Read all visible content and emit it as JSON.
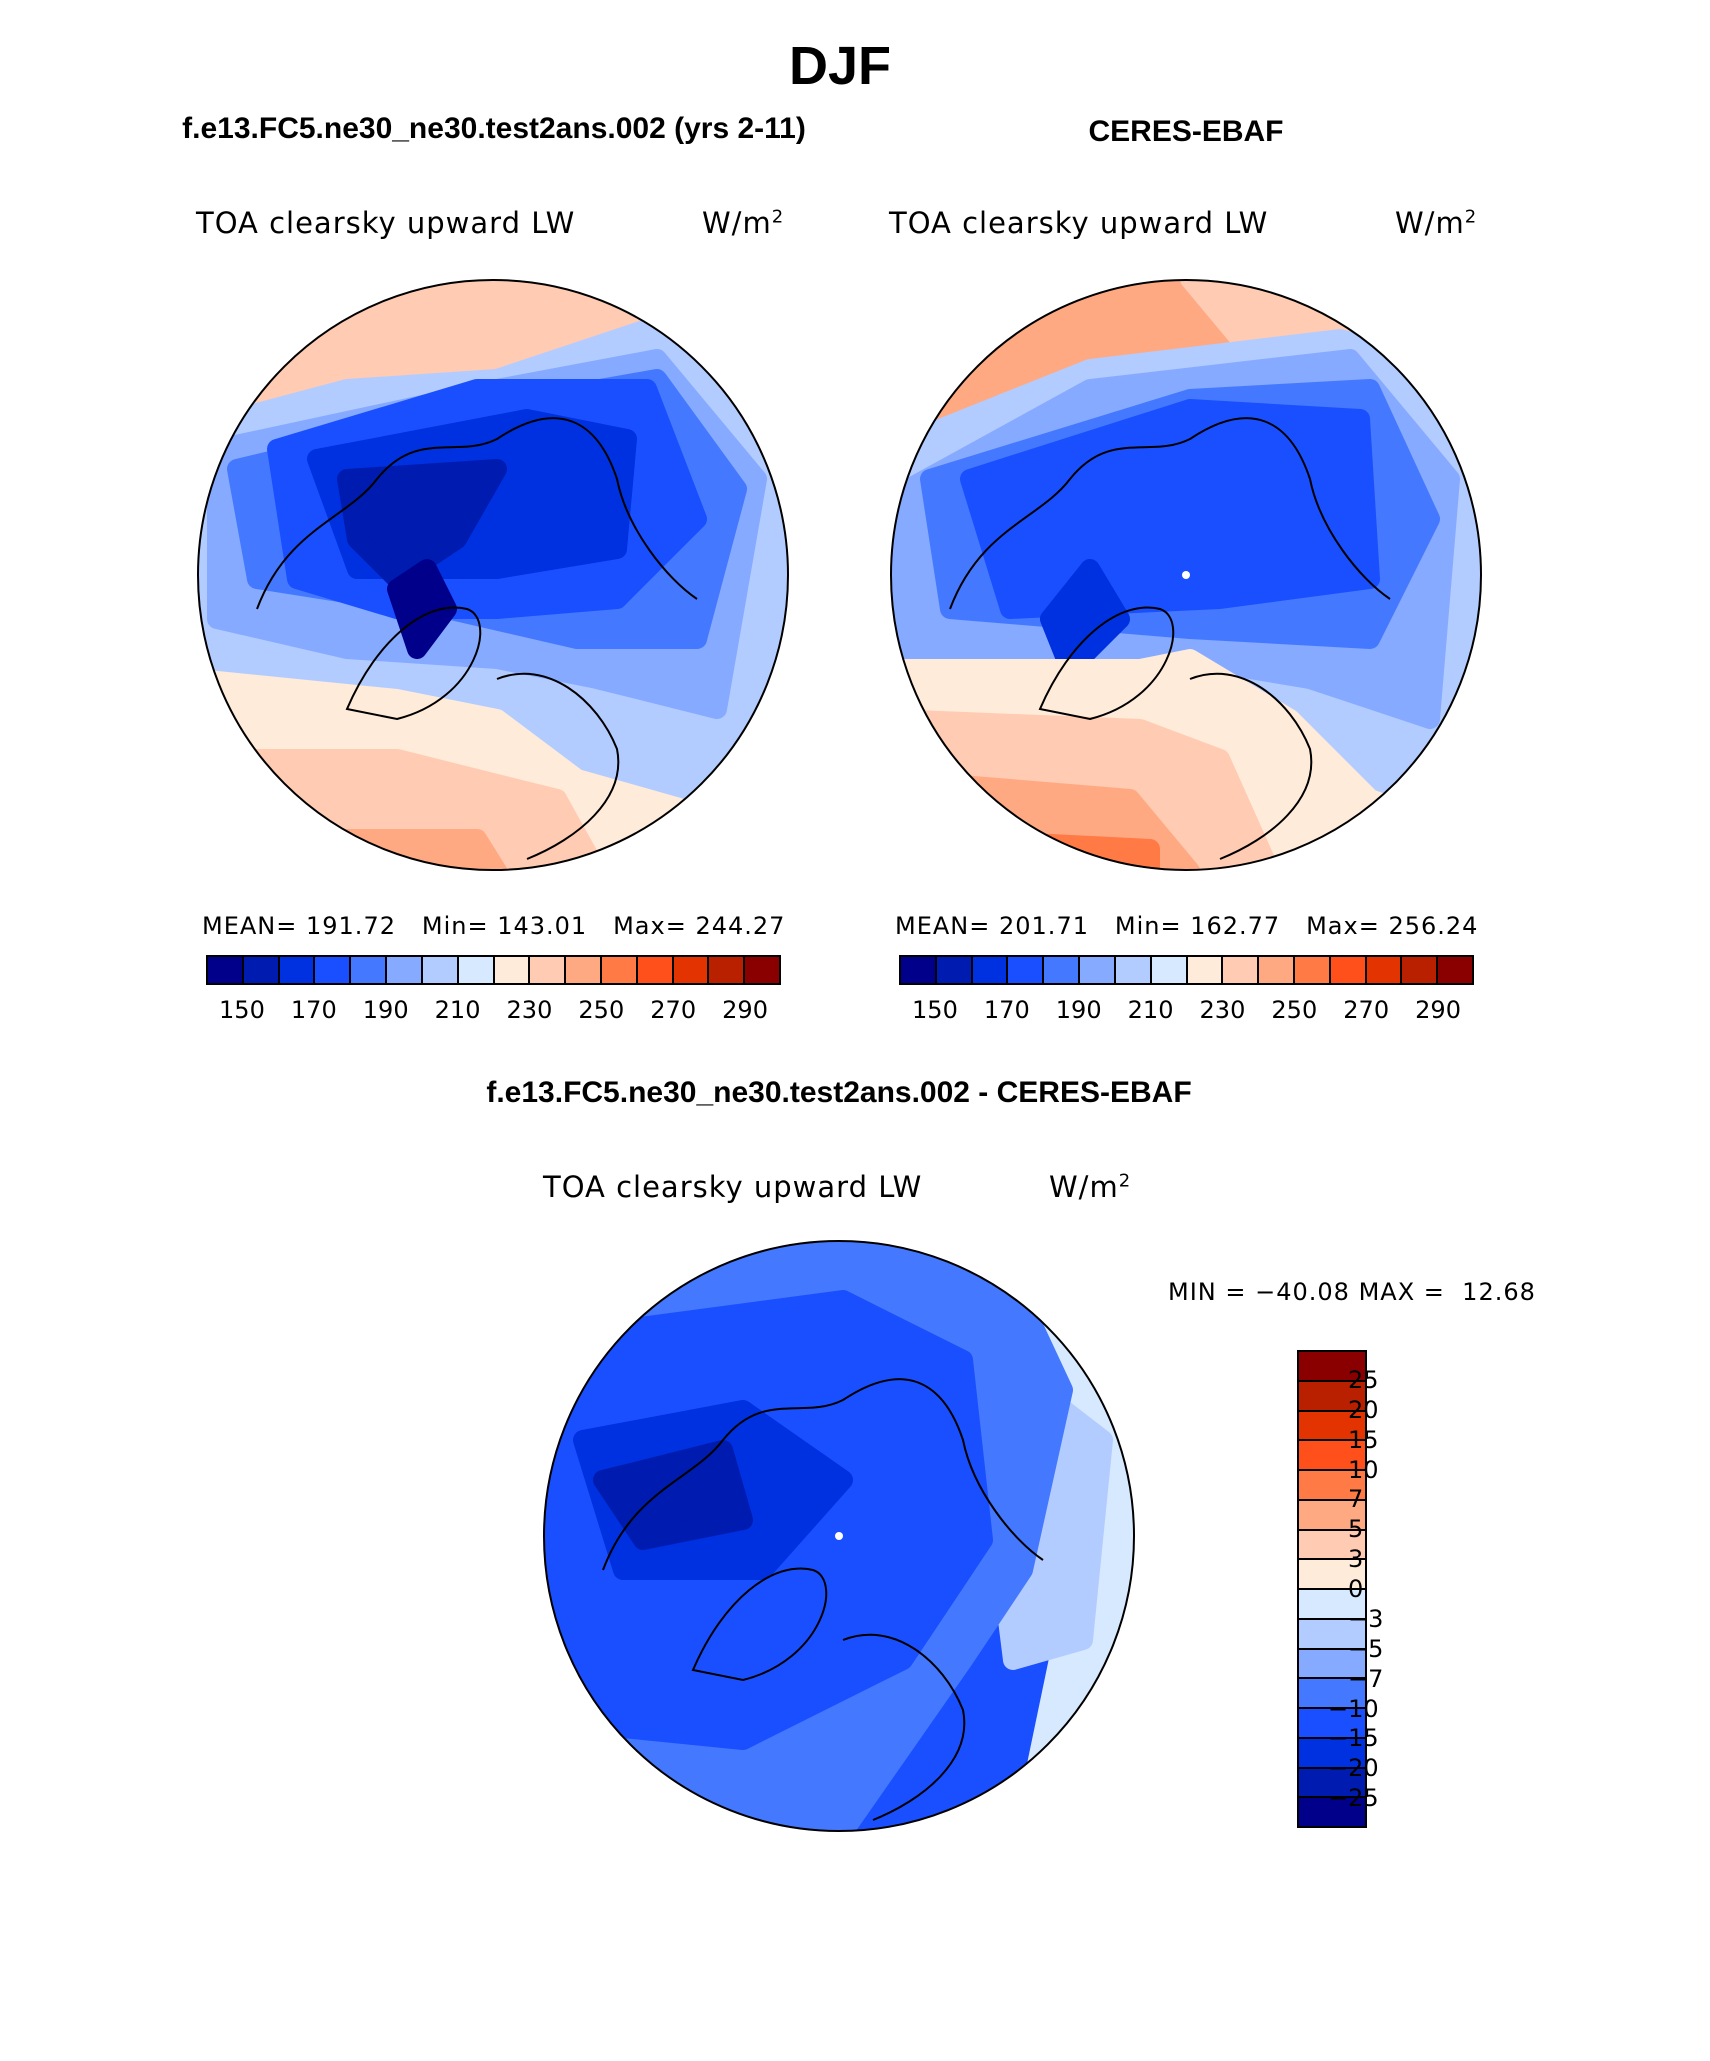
{
  "title": "DJF",
  "chart_data": [
    {
      "type": "heatmap",
      "projection": "north polar stereographic",
      "subtitle": "f.e13.FC5.ne30_ne30.test2ans.002 (yrs 2-11)",
      "title": "TOA clearsky upward LW",
      "units": "W/m2",
      "stats": {
        "mean_label": "MEAN=",
        "mean": "191.72",
        "min_label": "Min=",
        "min": "143.01",
        "max_label": "Max=",
        "max": "244.27"
      },
      "colorbar": {
        "orientation": "horizontal",
        "tick_labels": [
          "150",
          "170",
          "190",
          "210",
          "230",
          "250",
          "270",
          "290"
        ],
        "colors": [
          "#00008a",
          "#001bb0",
          "#0031e0",
          "#1a4fff",
          "#4479ff",
          "#86aaff",
          "#b3ccff",
          "#d6e9ff",
          "#ffebd9",
          "#ffcbb3",
          "#ffa983",
          "#ff7a44",
          "#ff501b",
          "#e23300",
          "#b82000",
          "#8a0000"
        ]
      }
    },
    {
      "type": "heatmap",
      "projection": "north polar stereographic",
      "subtitle": "CERES-EBAF",
      "title": "TOA clearsky upward LW",
      "units": "W/m2",
      "stats": {
        "mean_label": "MEAN=",
        "mean": "201.71",
        "min_label": "Min=",
        "min": "162.77",
        "max_label": "Max=",
        "max": "256.24"
      },
      "colorbar": {
        "orientation": "horizontal",
        "tick_labels": [
          "150",
          "170",
          "190",
          "210",
          "230",
          "250",
          "270",
          "290"
        ],
        "colors": [
          "#00008a",
          "#001bb0",
          "#0031e0",
          "#1a4fff",
          "#4479ff",
          "#86aaff",
          "#b3ccff",
          "#d6e9ff",
          "#ffebd9",
          "#ffcbb3",
          "#ffa983",
          "#ff7a44",
          "#ff501b",
          "#e23300",
          "#b82000",
          "#8a0000"
        ]
      }
    },
    {
      "type": "heatmap",
      "projection": "north polar stereographic",
      "subtitle": "f.e13.FC5.ne30_ne30.test2ans.002 - CERES-EBAF",
      "title": "TOA clearsky upward LW",
      "units": "W/m2",
      "stats": {
        "min_label": "MIN =",
        "min": "−40.08",
        "max_label": "MAX =",
        "max": "12.68"
      },
      "colorbar": {
        "orientation": "vertical",
        "tick_labels": [
          "25",
          "20",
          "15",
          "10",
          "7",
          "5",
          "3",
          "0",
          "−3",
          "−5",
          "−7",
          "−10",
          "−15",
          "−20",
          "−25"
        ],
        "colors": [
          "#8a0000",
          "#b82000",
          "#e23300",
          "#ff501b",
          "#ff7a44",
          "#ffa983",
          "#ffcbb3",
          "#ffebd9",
          "#d6e9ff",
          "#b3ccff",
          "#86aaff",
          "#4479ff",
          "#1a4fff",
          "#0031e0",
          "#001bb0",
          "#00008a"
        ]
      }
    }
  ]
}
